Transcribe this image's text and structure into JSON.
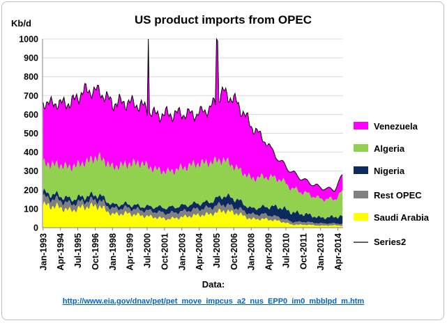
{
  "chart_data": {
    "type": "area",
    "stacked": true,
    "title": "US product imports from OPEC",
    "ylabel": "Kb/d",
    "xlabel": "",
    "ylim": [
      0,
      1000
    ],
    "yticks": [
      0,
      100,
      200,
      300,
      400,
      500,
      600,
      700,
      800,
      900,
      1000
    ],
    "grid": true,
    "legend_position": "right",
    "x_start": "Jan-1993",
    "x_end": "Aug-2014",
    "x_tick_labels": [
      "Jan-1993",
      "Apr-1994",
      "Jul-1995",
      "Oct-1996",
      "Jan-1998",
      "Apr-1999",
      "Jul-2000",
      "Oct-2001",
      "Jan-2003",
      "Apr-2004",
      "Jul-2005",
      "Oct-2006",
      "Jan-2008",
      "Apr-2009",
      "Jul-2010",
      "Oct-2011",
      "Jan-2013",
      "Apr-2014"
    ],
    "x_tick_months": [
      0,
      15,
      30,
      45,
      60,
      75,
      90,
      105,
      120,
      135,
      150,
      165,
      180,
      195,
      210,
      225,
      240,
      255
    ],
    "knot_months": [
      0,
      12,
      24,
      36,
      48,
      60,
      72,
      84,
      96,
      108,
      120,
      132,
      144,
      156,
      168,
      180,
      192,
      204,
      216,
      228,
      240,
      252,
      259
    ],
    "series": [
      {
        "name": "Saudi Arabia",
        "color": "#ffff00",
        "values": [
          120,
          110,
          90,
          110,
          115,
          70,
          75,
          65,
          55,
          45,
          55,
          65,
          70,
          90,
          75,
          45,
          45,
          35,
          15,
          15,
          10,
          12,
          10
        ]
      },
      {
        "name": "Rest OPEC",
        "color": "#808080",
        "values": [
          40,
          38,
          35,
          30,
          32,
          30,
          30,
          28,
          30,
          30,
          30,
          32,
          35,
          35,
          28,
          25,
          25,
          20,
          15,
          15,
          12,
          10,
          10
        ]
      },
      {
        "name": "Nigeria",
        "color": "#0d2a5e",
        "values": [
          25,
          25,
          25,
          25,
          28,
          20,
          20,
          20,
          25,
          30,
          30,
          30,
          30,
          45,
          45,
          30,
          40,
          55,
          50,
          40,
          30,
          35,
          40
        ]
      },
      {
        "name": "Algeria",
        "color": "#92d050",
        "values": [
          155,
          160,
          170,
          180,
          200,
          200,
          210,
          230,
          200,
          190,
          200,
          210,
          210,
          190,
          165,
          160,
          160,
          150,
          125,
          110,
          100,
          93,
          130
        ]
      },
      {
        "name": "Venezuela",
        "color": "#ff00ff",
        "values": [
          320,
          325,
          340,
          380,
          350,
          340,
          330,
          307,
          290,
          305,
          290,
          263,
          285,
          360,
          347,
          280,
          190,
          100,
          85,
          65,
          60,
          50,
          85
        ]
      }
    ],
    "total_line": {
      "name": "Series2",
      "color": "#000000",
      "values": [
        660,
        658,
        660,
        725,
        725,
        660,
        665,
        650,
        600,
        600,
        605,
        600,
        630,
        720,
        660,
        540,
        460,
        360,
        290,
        245,
        212,
        200,
        275
      ]
    },
    "spikes": [
      {
        "month": 91,
        "total": 1000
      },
      {
        "month": 150,
        "total": 1000
      },
      {
        "month": 151,
        "total": 990
      }
    ]
  },
  "footer": {
    "data_label": "Data:",
    "source_url": "http://www.eia.gov/dnav/pet/pet_move_impcus_a2_nus_EPP0_im0_mbblpd_m.htm"
  }
}
